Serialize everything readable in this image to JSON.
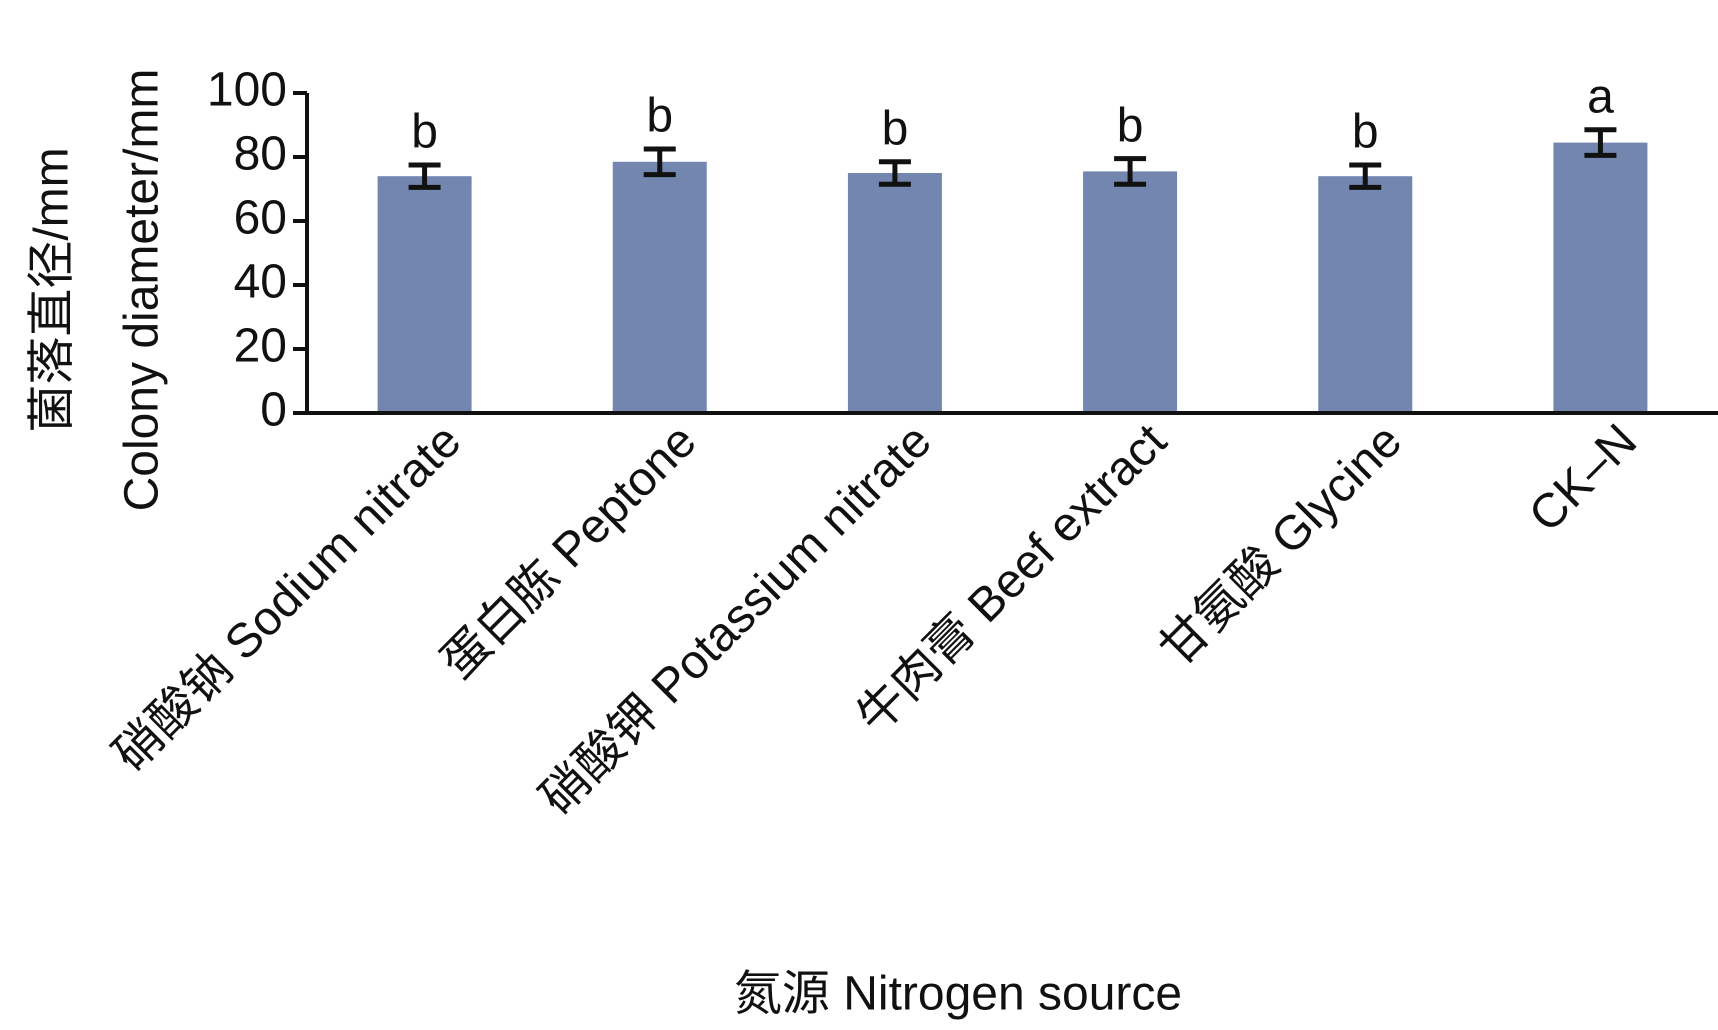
{
  "chart_data": {
    "type": "bar",
    "y_label_lines": [
      "菌落直径/mm",
      "Colony diameter/mm"
    ],
    "x_label": "氮源 Nitrogen source",
    "categories": [
      "硝酸钠 Sodium nitrate",
      "蛋白胨 Peptone",
      "硝酸钾 Potassium nitrate",
      "牛肉膏 Beef extract",
      "甘氨酸 Glycine",
      "CK–N"
    ],
    "values": [
      74,
      78.5,
      75,
      75.5,
      74,
      84.5
    ],
    "errors": [
      3.5,
      4,
      3.5,
      4,
      3.5,
      4
    ],
    "letters": [
      "b",
      "b",
      "b",
      "b",
      "b",
      "a"
    ],
    "color": "#7286b0",
    "ylim": [
      0,
      100
    ],
    "yticks": [
      0,
      20,
      40,
      60,
      80,
      100
    ]
  }
}
